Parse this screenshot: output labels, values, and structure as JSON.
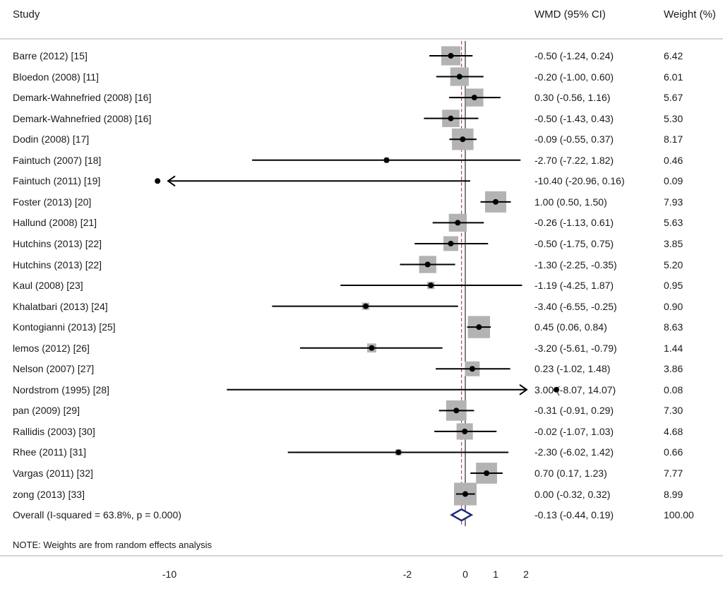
{
  "header": {
    "study": "Study",
    "wmd": "WMD (95% CI)",
    "weight": "Weight (%)"
  },
  "note": "NOTE: Weights are from random effects analysis",
  "chart_data": {
    "type": "forest",
    "title": "",
    "xlabel": "",
    "ylabel": "",
    "x_ticks": [
      -10,
      -2,
      0,
      1,
      2
    ],
    "xlim": [
      -10.4,
      3.0
    ],
    "null_line": 0,
    "pooled_line": -0.13,
    "studies": [
      {
        "label": "Barre (2012) [15]",
        "wmd": -0.5,
        "lower": -1.24,
        "upper": 0.24,
        "ci_text": "-0.50 (-1.24, 0.24)",
        "weight": 6.42,
        "weight_text": "6.42"
      },
      {
        "label": "Bloedon (2008) [11]",
        "wmd": -0.2,
        "lower": -1.0,
        "upper": 0.6,
        "ci_text": "-0.20 (-1.00, 0.60)",
        "weight": 6.01,
        "weight_text": "6.01"
      },
      {
        "label": "Demark-Wahnefried (2008) [16]",
        "wmd": 0.3,
        "lower": -0.56,
        "upper": 1.16,
        "ci_text": "0.30 (-0.56, 1.16)",
        "weight": 5.67,
        "weight_text": "5.67"
      },
      {
        "label": "Demark-Wahnefried (2008) [16]",
        "wmd": -0.5,
        "lower": -1.43,
        "upper": 0.43,
        "ci_text": "-0.50 (-1.43, 0.43)",
        "weight": 5.3,
        "weight_text": "5.30"
      },
      {
        "label": "Dodin (2008) [17]",
        "wmd": -0.09,
        "lower": -0.55,
        "upper": 0.37,
        "ci_text": "-0.09 (-0.55, 0.37)",
        "weight": 8.17,
        "weight_text": "8.17"
      },
      {
        "label": "Faintuch (2007) [18]",
        "wmd": -2.7,
        "lower": -7.22,
        "upper": 1.82,
        "ci_text": "-2.70 (-7.22, 1.82)",
        "weight": 0.46,
        "weight_text": "0.46"
      },
      {
        "label": "Faintuch (2011) [19]",
        "wmd": -10.4,
        "lower": -20.96,
        "upper": 0.16,
        "ci_text": "-10.40 (-20.96, 0.16)",
        "weight": 0.09,
        "weight_text": "0.09"
      },
      {
        "label": "Foster (2013) [20]",
        "wmd": 1.0,
        "lower": 0.5,
        "upper": 1.5,
        "ci_text": "1.00 (0.50, 1.50)",
        "weight": 7.93,
        "weight_text": "7.93"
      },
      {
        "label": "Hallund (2008) [21]",
        "wmd": -0.26,
        "lower": -1.13,
        "upper": 0.61,
        "ci_text": "-0.26 (-1.13, 0.61)",
        "weight": 5.63,
        "weight_text": "5.63"
      },
      {
        "label": "Hutchins (2013) [22]",
        "wmd": -0.5,
        "lower": -1.75,
        "upper": 0.75,
        "ci_text": "-0.50 (-1.75, 0.75)",
        "weight": 3.85,
        "weight_text": "3.85"
      },
      {
        "label": "Hutchins (2013) [22]",
        "wmd": -1.3,
        "lower": -2.25,
        "upper": -0.35,
        "ci_text": "-1.30 (-2.25, -0.35)",
        "weight": 5.2,
        "weight_text": "5.20"
      },
      {
        "label": "Kaul (2008) [23]",
        "wmd": -1.19,
        "lower": -4.25,
        "upper": 1.87,
        "ci_text": "-1.19 (-4.25, 1.87)",
        "weight": 0.95,
        "weight_text": "0.95"
      },
      {
        "label": "Khalatbari (2013) [24]",
        "wmd": -3.4,
        "lower": -6.55,
        "upper": -0.25,
        "ci_text": "-3.40 (-6.55, -0.25)",
        "weight": 0.9,
        "weight_text": "0.90"
      },
      {
        "label": "Kontogianni (2013) [25]",
        "wmd": 0.45,
        "lower": 0.06,
        "upper": 0.84,
        "ci_text": "0.45 (0.06, 0.84)",
        "weight": 8.63,
        "weight_text": "8.63"
      },
      {
        "label": "lemos (2012) [26]",
        "wmd": -3.2,
        "lower": -5.61,
        "upper": -0.79,
        "ci_text": "-3.20 (-5.61, -0.79)",
        "weight": 1.44,
        "weight_text": "1.44"
      },
      {
        "label": "Nelson (2007) [27]",
        "wmd": 0.23,
        "lower": -1.02,
        "upper": 1.48,
        "ci_text": "0.23 (-1.02, 1.48)",
        "weight": 3.86,
        "weight_text": "3.86"
      },
      {
        "label": "Nordstrom (1995) [28]",
        "wmd": 3.0,
        "lower": -8.07,
        "upper": 14.07,
        "ci_text": "3.00 (-8.07, 14.07)",
        "weight": 0.08,
        "weight_text": "0.08"
      },
      {
        "label": "pan (2009) [29]",
        "wmd": -0.31,
        "lower": -0.91,
        "upper": 0.29,
        "ci_text": "-0.31 (-0.91, 0.29)",
        "weight": 7.3,
        "weight_text": "7.30"
      },
      {
        "label": "Rallidis (2003) [30]",
        "wmd": -0.02,
        "lower": -1.07,
        "upper": 1.03,
        "ci_text": "-0.02 (-1.07, 1.03)",
        "weight": 4.68,
        "weight_text": "4.68"
      },
      {
        "label": "Rhee (2011) [31]",
        "wmd": -2.3,
        "lower": -6.02,
        "upper": 1.42,
        "ci_text": "-2.30 (-6.02, 1.42)",
        "weight": 0.66,
        "weight_text": "0.66"
      },
      {
        "label": "Vargas (2011) [32]",
        "wmd": 0.7,
        "lower": 0.17,
        "upper": 1.23,
        "ci_text": "0.70 (0.17, 1.23)",
        "weight": 7.77,
        "weight_text": "7.77"
      },
      {
        "label": "zong (2013) [33]",
        "wmd": 0.0,
        "lower": -0.32,
        "upper": 0.32,
        "ci_text": "0.00 (-0.32, 0.32)",
        "weight": 8.99,
        "weight_text": "8.99"
      }
    ],
    "overall": {
      "label": "Overall  (I-squared = 63.8%, p = 0.000)",
      "wmd": -0.13,
      "lower": -0.44,
      "upper": 0.19,
      "ci_text": "-0.13 (-0.44, 0.19)",
      "weight": 100.0,
      "weight_text": "100.00"
    },
    "colors": {
      "box": "#b3b3b3",
      "line": "#000000",
      "diamond": "#1f2a7a",
      "pooled_line": "#a0284a",
      "rule": "#c8c8c8"
    }
  }
}
